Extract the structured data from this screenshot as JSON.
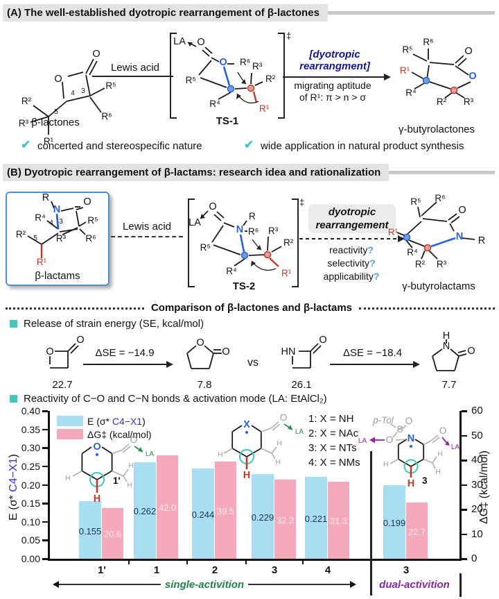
{
  "palette": {
    "header_bg": "#e3e3e3",
    "rule": "#c9c9c9",
    "teal": "#49c5bc",
    "navy": "#15158c",
    "blue_atom": "#2b5fd9",
    "red_atom": "#c0392b",
    "green": "#1e8449",
    "purple": "#8e24aa",
    "bar_blue": "#a8ddf2",
    "bar_pink": "#f5a9bc"
  },
  "atoms": {
    "o": "O",
    "n": "N",
    "h": "H",
    "hn": "HN",
    "la": "LA",
    "r": "R",
    "x": "X",
    "s": "S",
    "r1": "R¹",
    "r2": "R²",
    "r3": "R³",
    "r4": "R⁴",
    "r5": "R⁵",
    "r6": "R⁶",
    "num3": "3",
    "num4": "4",
    "num5": "5",
    "ptol": "p-Tol"
  },
  "section_a": {
    "header": "(A) The well-established dyotropic rearrangement of β-lactones",
    "reactant_label": "β-lactones",
    "arrow_label": "Lewis acid",
    "ts_label": "TS-1",
    "dagger": "‡",
    "rearr_line1": "[dyotropic",
    "rearr_line2": "rearrangment]",
    "migrating_line1": "migrating aptitude",
    "migrating_line2": "of R¹: π > n > σ",
    "product_label": "γ-butyrolactones",
    "checkmark": "✔",
    "check1": "concerted and stereospecific nature",
    "check2": "wide application in natural product synthesis"
  },
  "section_b": {
    "header": "(B) Dyotropic rearrangement of β-lactams: research idea and rationalization",
    "reactant_label": "β-lactams",
    "arrow_label": "Lewis acid",
    "ts_label": "TS-2",
    "dagger": "‡",
    "rearr_line1": "dyotropic",
    "rearr_line2": "rearrangement",
    "q1_text": "reactivity",
    "q1_mark": "?",
    "q2_text": "selectivity",
    "q2_mark": "?",
    "q3_text": "applicability",
    "q3_mark": "?",
    "product_label": "γ-butyrolactams"
  },
  "comparison": {
    "title": "Comparison of β-lactones and β-lactams",
    "strain_header": "Release of strain energy (SE, kcal/mol)",
    "se1": "22.7",
    "arrow1": "ΔSE = −14.9",
    "se2": "7.8",
    "vs": "vs",
    "se3": "26.1",
    "arrow2": "ΔSE = −18.4",
    "se4": "7.7",
    "reactivity_header": "Reactivity of C−O and C−N bonds & activation mode (LA: EtAlCl₂)"
  },
  "chart_data": {
    "type": "bar",
    "categories": [
      "1'",
      "1",
      "2",
      "3",
      "4",
      "3"
    ],
    "series": [
      {
        "name": "E (σ* C4−X1)",
        "axis": "left",
        "color": "#a8ddf2",
        "values": [
          0.155,
          0.262,
          0.244,
          0.229,
          0.221,
          0.199
        ]
      },
      {
        "name": "ΔG‡ (kcal/mol)",
        "axis": "right",
        "color": "#f5a9bc",
        "values": [
          20.6,
          42.0,
          39.5,
          32.2,
          31.3,
          22.7
        ]
      }
    ],
    "left_axis": {
      "label_pre": "E (σ* ",
      "label_blue": "C4−X1",
      "label_post": ")",
      "min": 0,
      "max": 0.4,
      "ticks": [
        "0.40",
        "0.35",
        "0.30",
        "0.25",
        "0.20",
        "0.15",
        "0.10",
        "0.05",
        "0.00"
      ]
    },
    "right_axis": {
      "label": "ΔG‡ (kcal/mol)",
      "min": 0,
      "max": 60,
      "ticks": [
        "60",
        "50",
        "40",
        "30",
        "20",
        "10",
        "0"
      ]
    },
    "legend": {
      "e_pre": "E (σ* ",
      "e_blue": "C4−X1",
      "e_post": ")",
      "g": "ΔG‡ (kcal/mol)"
    },
    "compound_key": [
      "1: X = NH",
      "2: X = NAc",
      "3: X = NTs",
      "4: X = NMs"
    ],
    "single_label": "single-activition",
    "dual_label": "dual-activition",
    "inset1_label": "1'",
    "inset3_label": "3",
    "grid": false,
    "legend_position": "top-left"
  }
}
